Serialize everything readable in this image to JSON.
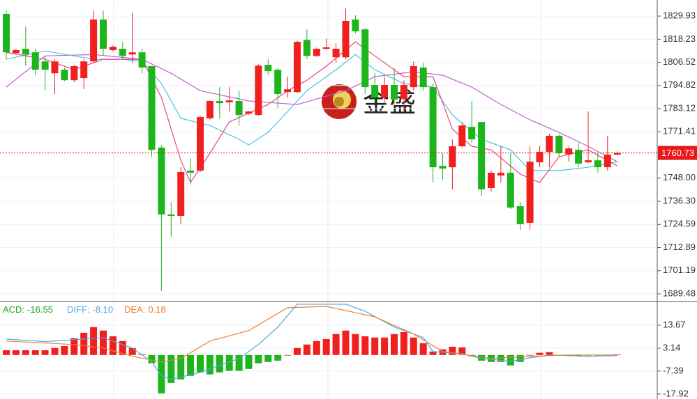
{
  "chart_data": [
    {
      "type": "candlestick",
      "up_color": "#f0201e",
      "down_color": "#1cb51c",
      "open": [
        1831.0,
        1811.2,
        1813.4,
        1811.6,
        1807.0,
        1801.0,
        1802.8,
        1797.5,
        1798.6,
        1807.0,
        1828.2,
        1812.7,
        1813.4,
        1810.5,
        1811.6,
        1804.6,
        1763.4,
        1729.6,
        1728.9,
        1751.8,
        1751.8,
        1778.2,
        1787.0,
        1786.3,
        1787.0,
        1780.6,
        1779.9,
        1805.3,
        1802.8,
        1791.5,
        1791.5,
        1817.9,
        1809.8,
        1813.4,
        1809.1,
        1809.1,
        1828.2,
        1823.2,
        1795.1,
        1788.7,
        1795.1,
        1788.0,
        1794.0,
        1803.9,
        1794.0,
        1754.2,
        1753.5,
        1764.1,
        1773.9,
        1776.4,
        1743.0,
        1749.3,
        1750.7,
        1733.8,
        1725.4,
        1756.0,
        1761.3,
        1769.4,
        1760.0,
        1762.3,
        1756.0,
        1757.0,
        1753.5,
        1759.9
      ],
      "high": [
        1832.7,
        1813.4,
        1824.6,
        1813.4,
        1809.8,
        1808.1,
        1803.9,
        1805.3,
        1808.1,
        1832.7,
        1832.7,
        1815.0,
        1816.9,
        1831.7,
        1813.4,
        1804.6,
        1764.8,
        1735.9,
        1753.5,
        1757.7,
        1779.5,
        1787.3,
        1794.0,
        1794.0,
        1792.2,
        1782.0,
        1805.5,
        1808.1,
        1803.5,
        1799.3,
        1817.5,
        1823.2,
        1814.0,
        1818.6,
        1816.2,
        1833.8,
        1830.3,
        1823.9,
        1801.0,
        1799.3,
        1803.5,
        1797.5,
        1807.0,
        1806.3,
        1795.8,
        1760.6,
        1767.6,
        1776.4,
        1786.9,
        1776.4,
        1751.8,
        1764.1,
        1760.6,
        1735.9,
        1764.1,
        1764.1,
        1770.4,
        1770.4,
        1764.1,
        1765.8,
        1781.7,
        1760.6,
        1769.4,
        1761.5
      ],
      "low": [
        1808.1,
        1810.5,
        1804.6,
        1800.0,
        1792.2,
        1790.5,
        1797.0,
        1796.5,
        1793.0,
        1806.3,
        1809.8,
        1812.0,
        1808.1,
        1806.3,
        1801.0,
        1758.8,
        1690.9,
        1718.3,
        1724.7,
        1744.7,
        1751.0,
        1777.5,
        1778.2,
        1781.7,
        1774.6,
        1780.0,
        1779.5,
        1800.0,
        1783.4,
        1788.7,
        1791.0,
        1808.1,
        1809.3,
        1812.7,
        1806.3,
        1808.1,
        1821.1,
        1790.5,
        1785.9,
        1785.2,
        1785.2,
        1781.7,
        1792.2,
        1792.2,
        1745.8,
        1747.2,
        1742.3,
        1763.4,
        1765.8,
        1738.7,
        1741.2,
        1745.8,
        1732.4,
        1721.8,
        1721.8,
        1753.5,
        1753.5,
        1758.8,
        1756.3,
        1753.5,
        1755.3,
        1750.7,
        1751.8,
        1759.5
      ],
      "close": [
        1811.6,
        1812.7,
        1810.5,
        1802.8,
        1802.8,
        1807.0,
        1797.5,
        1804.6,
        1807.0,
        1828.2,
        1813.4,
        1814.4,
        1809.8,
        1811.6,
        1803.9,
        1762.3,
        1729.6,
        1728.9,
        1751.1,
        1750.7,
        1778.9,
        1787.0,
        1785.9,
        1787.3,
        1779.9,
        1781.7,
        1804.9,
        1802.1,
        1790.5,
        1792.9,
        1816.9,
        1809.8,
        1813.4,
        1814.1,
        1813.4,
        1827.5,
        1822.2,
        1794.0,
        1788.7,
        1795.1,
        1787.7,
        1795.1,
        1804.6,
        1794.0,
        1753.5,
        1752.8,
        1764.1,
        1774.6,
        1767.6,
        1742.3,
        1750.7,
        1750.7,
        1733.1,
        1724.7,
        1756.3,
        1761.3,
        1769.4,
        1760.6,
        1763.0,
        1755.3,
        1757.0,
        1753.5,
        1759.9,
        1760.73
      ],
      "ylim": [
        1685.6,
        1836.3
      ],
      "yticks": [
        1829.93,
        1818.23,
        1806.52,
        1794.82,
        1783.12,
        1771.41,
        {
          "value": 1748.0,
          "label": "1748.00"
        },
        {
          "value": 1736.3,
          "label": "1736.30"
        },
        1724.59,
        1712.89,
        1701.19,
        1689.48
      ],
      "last_price": 1760.73,
      "last_price_color": "#e8191b",
      "moving_averages": [
        {
          "color": "#c45fd0",
          "x": [
            0,
            4,
            9,
            14,
            17,
            20,
            25,
            30,
            35,
            38,
            42,
            45,
            48,
            51,
            54,
            57,
            60,
            63
          ],
          "values": [
            1794.0,
            1809.8,
            1810.5,
            1808.1,
            1801.0,
            1792.2,
            1787.0,
            1785.2,
            1792.2,
            1799.3,
            1801.8,
            1800.0,
            1794.0,
            1785.2,
            1777.5,
            1771.1,
            1764.1,
            1756.3
          ]
        },
        {
          "color": "#45c3dc",
          "x": [
            0,
            4,
            9,
            12,
            14,
            16,
            18,
            21,
            24,
            25,
            27,
            29,
            31,
            34,
            36,
            38,
            41,
            44,
            46,
            49,
            52,
            54,
            57,
            60,
            63
          ],
          "values": [
            1808.1,
            1812.3,
            1808.1,
            1808.1,
            1807.0,
            1795.8,
            1778.2,
            1774.6,
            1767.6,
            1764.8,
            1771.1,
            1781.7,
            1792.2,
            1802.8,
            1810.5,
            1802.8,
            1795.8,
            1794.0,
            1779.9,
            1767.6,
            1762.3,
            1751.8,
            1751.8,
            1753.5,
            1756.3
          ]
        },
        {
          "color": "#e4487f",
          "x": [
            0,
            4,
            7,
            10,
            14,
            16,
            18,
            19,
            21,
            23,
            27,
            29,
            31,
            33,
            36,
            38,
            41,
            44,
            46,
            48,
            50,
            53,
            55,
            57,
            60,
            63
          ],
          "values": [
            1811.6,
            1808.1,
            1802.8,
            1808.1,
            1808.1,
            1788.7,
            1757.0,
            1745.8,
            1760.6,
            1776.4,
            1785.2,
            1792.2,
            1797.5,
            1804.6,
            1816.9,
            1809.8,
            1799.3,
            1799.3,
            1772.8,
            1764.1,
            1762.3,
            1750.0,
            1745.8,
            1758.8,
            1762.3,
            1754.2
          ]
        }
      ],
      "watermark": "金盛"
    },
    {
      "type": "macd",
      "name": "ACD:",
      "current": -16.55,
      "color": "#1aa51a",
      "up_color": "#f0201e",
      "down_color": "#1cb51c",
      "values": [
        2.2,
        2.2,
        2.2,
        2.2,
        2.2,
        3.2,
        4.1,
        7.7,
        10.2,
        12.8,
        11.2,
        8.6,
        6.4,
        3.2,
        0.3,
        -3.8,
        -17.6,
        -12.8,
        -11.2,
        -9.6,
        -8.0,
        -8.9,
        -8.0,
        -7.3,
        -7.3,
        -6.4,
        -3.8,
        -3.2,
        -2.6,
        0,
        3.2,
        4.8,
        6.4,
        7.3,
        9.6,
        11.2,
        9.6,
        8.6,
        8.0,
        8.0,
        9.6,
        10.5,
        8.0,
        5.4,
        1.6,
        2.6,
        3.8,
        3.5,
        -0.6,
        -2.6,
        -3.2,
        -3.2,
        -4.8,
        -3.2,
        0,
        1.0,
        1.3,
        -0.3,
        -0.3,
        -0.6,
        -0.3,
        -0.3,
        0,
        0.3
      ],
      "series": [
        {
          "name": "DIFF:",
          "current": -8.1,
          "current_label": "-8.10",
          "color": "#4aa8e8",
          "x": [
            0,
            4,
            7,
            10,
            13,
            15,
            16,
            17,
            20,
            24,
            26,
            28,
            30,
            35,
            37,
            40,
            43,
            44,
            47,
            49,
            52,
            54,
            56,
            60,
            63
          ],
          "values": [
            7.3,
            6.1,
            7.0,
            8.0,
            3.2,
            -3.2,
            -9.6,
            -11.2,
            -8.0,
            -1.6,
            4.8,
            12.8,
            23.3,
            23.3,
            20.1,
            12.8,
            8.0,
            1.6,
            0.6,
            -1.6,
            -2.9,
            -1.3,
            0,
            -0.6,
            -0.3
          ]
        },
        {
          "name": "DEA:",
          "current": 0.18,
          "color": "#f0802e",
          "x": [
            0,
            7,
            10,
            13,
            16,
            18,
            21,
            25,
            29,
            33,
            38,
            42,
            45,
            50,
            54,
            58,
            63
          ],
          "values": [
            6.4,
            4.8,
            3.2,
            -0.6,
            -3.2,
            -1.6,
            6.4,
            11.2,
            21.7,
            22.3,
            17.5,
            9.6,
            1.6,
            -1.6,
            -0.6,
            0,
            0
          ]
        }
      ],
      "ylim": [
        -20.2,
        23.9
      ],
      "yticks": [
        13.67,
        3.14,
        -7.39,
        -17.92
      ]
    }
  ]
}
